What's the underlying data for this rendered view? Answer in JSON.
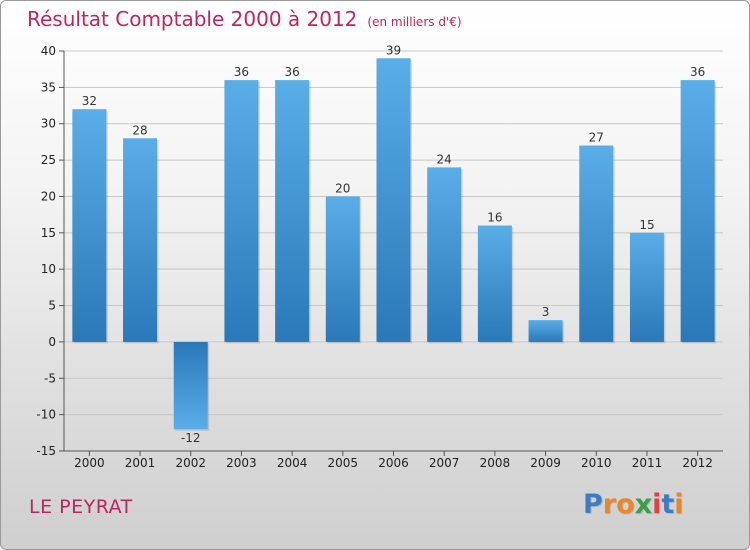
{
  "chart_data": {
    "type": "bar",
    "title": "Résultat Comptable 2000 à 2012",
    "subtitle": "(en milliers d'€)",
    "categories": [
      "2000",
      "2001",
      "2002",
      "2003",
      "2004",
      "2005",
      "2006",
      "2007",
      "2008",
      "2009",
      "2010",
      "2011",
      "2012"
    ],
    "values": [
      32,
      28,
      -12,
      36,
      36,
      20,
      39,
      24,
      16,
      3,
      27,
      15,
      36
    ],
    "ylim": [
      -15,
      40
    ],
    "yticks": [
      -15,
      -10,
      -5,
      0,
      5,
      10,
      15,
      20,
      25,
      30,
      35,
      40
    ],
    "xlabel": "",
    "ylabel": "",
    "bar_color_top": "#5aaee8",
    "bar_color_bottom": "#2a78b8"
  },
  "footer": {
    "city": "LE PEYRAT",
    "logo": {
      "text": "Proxiti",
      "letters": [
        {
          "ch": "P",
          "color": "#3a7dc4"
        },
        {
          "ch": "r",
          "color": "#e8862a"
        },
        {
          "ch": "o",
          "color": "#e8862a"
        },
        {
          "ch": "x",
          "color": "#3aa04a"
        },
        {
          "ch": "i",
          "color": "#e04040"
        },
        {
          "ch": "t",
          "color": "#3a7dc4"
        },
        {
          "ch": "i",
          "color": "#e8862a"
        }
      ]
    }
  }
}
